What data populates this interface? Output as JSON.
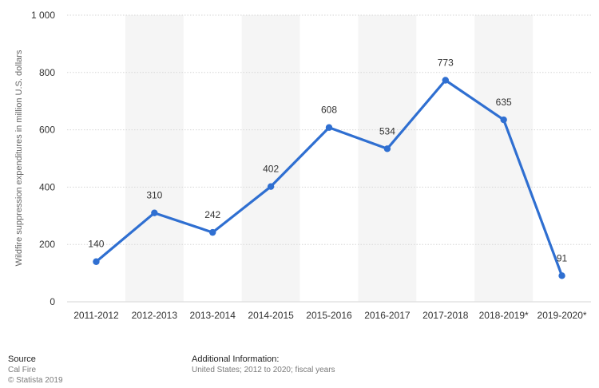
{
  "chart_data": {
    "type": "line",
    "categories": [
      "2011-2012",
      "2012-2013",
      "2013-2014",
      "2014-2015",
      "2015-2016",
      "2016-2017",
      "2017-2018",
      "2018-2019*",
      "2019-2020*"
    ],
    "values": [
      140,
      310,
      242,
      402,
      608,
      534,
      773,
      635,
      91
    ],
    "data_labels": [
      "140",
      "310",
      "242",
      "402",
      "608",
      "534",
      "773",
      "635",
      "91"
    ],
    "ylabel": "Wildfire suppression expenditures in million U.S. dollars",
    "ylim": [
      0,
      1000
    ],
    "yticks": [
      0,
      200,
      400,
      600,
      800,
      1000
    ],
    "ytick_labels": [
      "0",
      "200",
      "400",
      "600",
      "800",
      "1 000"
    ],
    "grid": true,
    "line_color": "#2f6fd1",
    "band_color": "#f5f5f5"
  },
  "footer": {
    "source_heading": "Source",
    "source_name": "Cal Fire",
    "copyright": "© Statista 2019",
    "info_heading": "Additional Information:",
    "info_text": "United States; 2012 to 2020; fiscal years"
  }
}
